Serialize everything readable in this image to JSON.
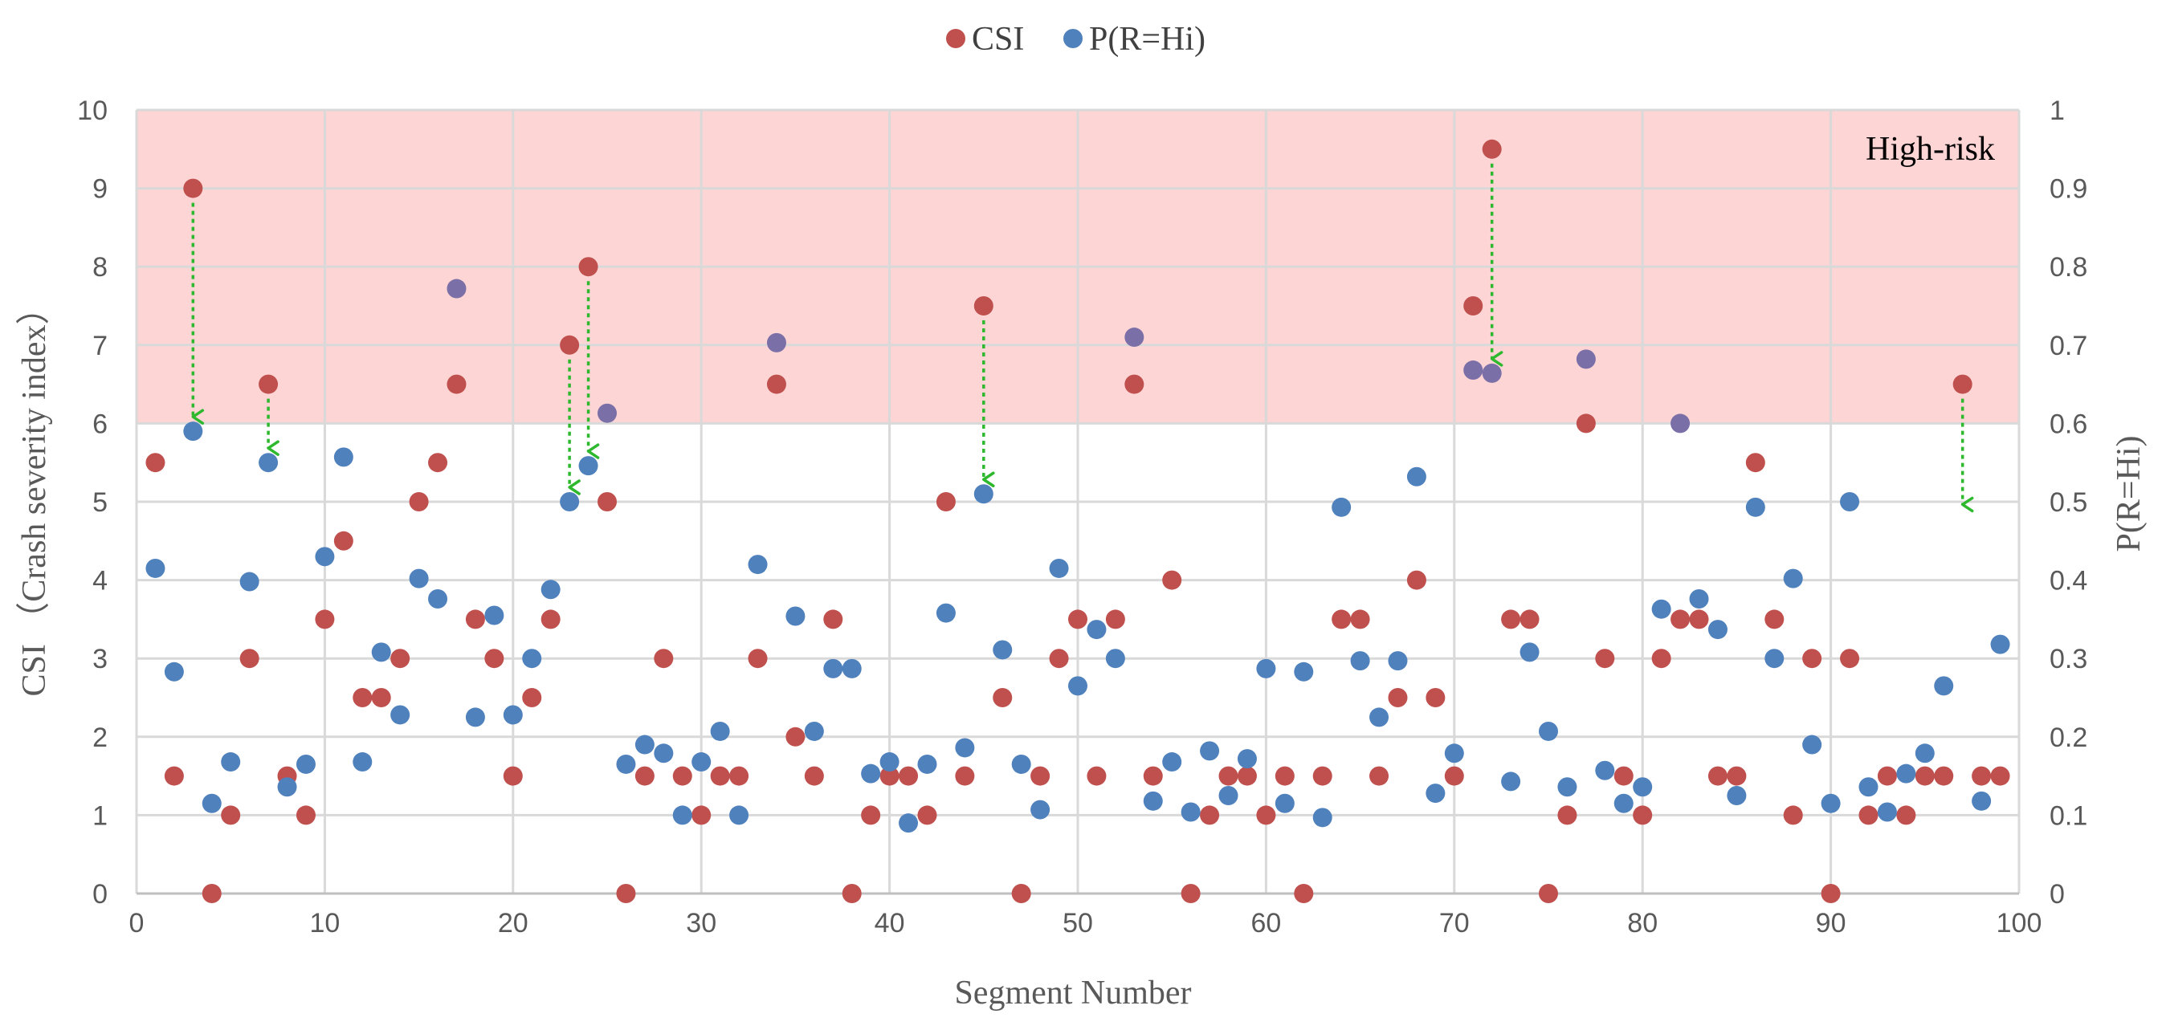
{
  "chart_data": {
    "type": "scatter",
    "xlabel": "Segment Number",
    "ylabel_left": "CSI （Crash severity  index）",
    "ylabel_right": "P(R=Hi)",
    "xlim": [
      0,
      100
    ],
    "ylim_left": [
      0,
      10
    ],
    "ylim_right": [
      0,
      1
    ],
    "x_ticks": [
      "0",
      "10",
      "20",
      "30",
      "40",
      "50",
      "60",
      "70",
      "80",
      "90",
      "100"
    ],
    "y_ticks_left": [
      "0",
      "1",
      "2",
      "3",
      "4",
      "5",
      "6",
      "7",
      "8",
      "9",
      "10"
    ],
    "y_ticks_right": [
      "0",
      "0.1",
      "0.2",
      "0.3",
      "0.4",
      "0.5",
      "0.6",
      "0.7",
      "0.8",
      "0.9",
      "1"
    ],
    "grid": true,
    "legend_position": "top-center",
    "high_risk_zone": {
      "label": "High-risk",
      "csi_from": 6,
      "csi_to": 10,
      "color": "#fdd5d5"
    },
    "series": [
      {
        "name": "CSI",
        "axis": "left",
        "color": "#c0504d",
        "x": [
          1,
          2,
          4,
          5,
          6,
          7,
          8,
          9,
          10,
          11,
          12,
          13,
          14,
          15,
          16,
          17,
          18,
          19,
          20,
          21,
          22,
          23,
          24,
          25,
          26,
          27,
          28,
          29,
          30,
          31,
          32,
          33,
          34,
          35,
          36,
          37,
          38,
          39,
          40,
          41,
          42,
          43,
          44,
          45,
          46,
          47,
          48,
          49,
          50,
          51,
          52,
          53,
          54,
          55,
          56,
          57,
          58,
          59,
          60,
          61,
          62,
          63,
          64,
          65,
          66,
          67,
          68,
          69,
          70,
          71,
          73,
          74,
          75,
          76,
          77,
          78,
          79,
          80,
          81,
          82,
          83,
          84,
          85,
          86,
          87,
          88,
          89,
          90,
          91,
          92,
          93,
          94,
          95,
          96,
          97,
          98,
          99,
          3,
          72
        ],
        "y": [
          5.5,
          1.5,
          0,
          1,
          3,
          6.5,
          1.5,
          1,
          3.5,
          4.5,
          2.5,
          2.5,
          3,
          5,
          5.5,
          6.5,
          3.5,
          3,
          1.5,
          2.5,
          3.5,
          7,
          8,
          5,
          0,
          1.5,
          3,
          1.5,
          1,
          1.5,
          1.5,
          3,
          6.5,
          2,
          1.5,
          3.5,
          0,
          1,
          1.5,
          1.5,
          1,
          5,
          1.5,
          7.5,
          2.5,
          0,
          1.5,
          3,
          3.5,
          1.5,
          3.5,
          6.5,
          1.5,
          4,
          0,
          1,
          1.5,
          1.5,
          1,
          1.5,
          0,
          1.5,
          3.5,
          3.5,
          1.5,
          2.5,
          4,
          2.5,
          1.5,
          7.5,
          3.5,
          3.5,
          0,
          1,
          6,
          3,
          1.5,
          1,
          3,
          3.5,
          3.5,
          1.5,
          1.5,
          5.5,
          3.5,
          1,
          3,
          0,
          3,
          1,
          1.5,
          1,
          1.5,
          1.5,
          6.5,
          1.5,
          1.5,
          9,
          9.5
        ]
      },
      {
        "name": "P(R=Hi)",
        "axis": "right",
        "color": "#4f81bd",
        "x": [
          1,
          2,
          3,
          4,
          5,
          6,
          7,
          8,
          9,
          10,
          11,
          12,
          13,
          14,
          15,
          16,
          17,
          18,
          19,
          20,
          21,
          22,
          23,
          24,
          25,
          26,
          27,
          28,
          29,
          30,
          31,
          32,
          33,
          34,
          35,
          36,
          37,
          38,
          39,
          40,
          41,
          42,
          43,
          44,
          45,
          46,
          47,
          48,
          49,
          50,
          51,
          52,
          53,
          54,
          55,
          56,
          57,
          58,
          59,
          60,
          61,
          62,
          63,
          64,
          65,
          66,
          67,
          68,
          69,
          70,
          71,
          72,
          73,
          74,
          75,
          76,
          77,
          78,
          79,
          80,
          81,
          82,
          83,
          84,
          85,
          86,
          87,
          88,
          89,
          90,
          91,
          92,
          93,
          94,
          95,
          96,
          98,
          99
        ],
        "y": [
          0.415,
          0.283,
          0.59,
          0.115,
          0.168,
          0.398,
          0.55,
          0.136,
          0.165,
          0.43,
          0.557,
          0.168,
          0.308,
          0.228,
          0.402,
          0.376,
          0.772,
          0.225,
          0.355,
          0.228,
          0.3,
          0.388,
          0.5,
          0.546,
          0.613,
          0.165,
          0.19,
          0.179,
          0.1,
          0.168,
          0.207,
          0.1,
          0.42,
          0.703,
          0.354,
          0.207,
          0.287,
          0.287,
          0.153,
          0.168,
          0.09,
          0.165,
          0.358,
          0.186,
          0.51,
          0.311,
          0.165,
          0.107,
          0.415,
          0.265,
          0.337,
          0.3,
          0.71,
          0.118,
          0.168,
          0.104,
          0.182,
          0.125,
          0.172,
          0.287,
          0.115,
          0.283,
          0.097,
          0.493,
          0.297,
          0.225,
          0.297,
          0.532,
          0.128,
          0.179,
          0.668,
          0.664,
          0.143,
          0.308,
          0.207,
          0.136,
          0.682,
          0.157,
          0.115,
          0.136,
          0.363,
          0.6,
          0.376,
          0.337,
          0.125,
          0.493,
          0.3,
          0.402,
          0.19,
          0.115,
          0.5,
          0.136,
          0.104,
          0.153,
          0.179,
          0.265,
          0.118,
          0.318
        ]
      }
    ],
    "arrows": [
      {
        "x": 3,
        "from_csi": 9.0,
        "to_csi": 5.9
      },
      {
        "x": 7,
        "from_csi": 6.5,
        "to_csi": 5.5
      },
      {
        "x": 23,
        "from_csi": 7.0,
        "to_csi": 5.0
      },
      {
        "x": 24,
        "from_csi": 8.0,
        "to_csi": 5.46
      },
      {
        "x": 45,
        "from_csi": 7.5,
        "to_csi": 5.1
      },
      {
        "x": 72,
        "from_csi": 9.5,
        "to_csi": 6.64
      },
      {
        "x": 97,
        "from_csi": 6.5,
        "to_csi": 4.78
      }
    ],
    "arrow_color": "#2eb82e"
  }
}
